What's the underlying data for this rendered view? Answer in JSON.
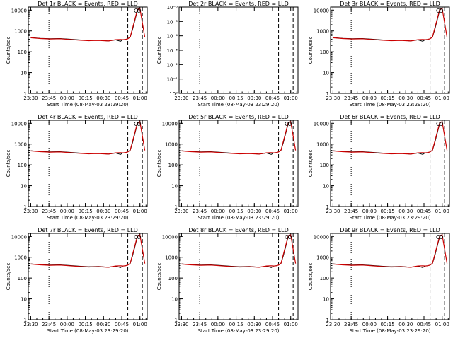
{
  "figure": {
    "background": "#ffffff",
    "events_color": "#000000",
    "lld_color": "#cc0000"
  },
  "chart_data": [
    {
      "type": "line",
      "title": "Det 1r BLACK = Events, RED = LLD",
      "xlabel": "Start Time (08-May-03 23:29:20)",
      "ylabel": "Counts/sec",
      "scale": "log",
      "x_ticks": [
        "23:30",
        "23:45",
        "00:00",
        "00:15",
        "00:30",
        "00:45",
        "01:00"
      ],
      "y_ticks": [
        "1",
        "10",
        "100",
        "1000",
        "10000"
      ],
      "ylim": [
        1,
        14000
      ],
      "x_minutes": [
        0,
        8,
        16,
        24,
        32,
        40,
        48,
        56,
        64,
        70,
        74,
        76,
        78,
        80,
        82,
        84,
        88,
        90,
        94
      ],
      "series": [
        {
          "name": "BLACK",
          "values": [
            480,
            440,
            420,
            430,
            400,
            370,
            350,
            360,
            330,
            370,
            320,
            380,
            390,
            420,
            500,
            1200,
            10000,
            12000,
            null
          ]
        },
        {
          "name": "RED",
          "values": [
            470,
            430,
            410,
            420,
            390,
            360,
            340,
            350,
            330,
            380,
            390,
            380,
            390,
            420,
            520,
            1400,
            11000,
            12000,
            500
          ]
        }
      ],
      "vlines": [
        {
          "x": 15,
          "style": "dotted"
        },
        {
          "x": 80,
          "style": "dashed"
        },
        {
          "x": 92,
          "style": "dashed"
        }
      ]
    },
    {
      "type": "line",
      "title": "Det 2r BLACK = Events, RED = LLD",
      "xlabel": "Start Time (08-May-03 23:29:20)",
      "ylabel": "Counts/sec",
      "scale": "log",
      "x_ticks": [
        "23:30",
        "23:45",
        "00:00",
        "00:15",
        "00:30",
        "00:45",
        "01:00"
      ],
      "y_ticks": [
        "10⁰",
        "10⁻¹",
        "10⁻²",
        "10⁻³",
        "10⁻⁴",
        "10⁻⁵",
        "10⁻⁶"
      ],
      "empty": true,
      "vlines": [
        {
          "x": 15,
          "style": "dotted"
        },
        {
          "x": 80,
          "style": "dashed"
        },
        {
          "x": 92,
          "style": "dashed"
        }
      ]
    },
    {
      "type": "line",
      "title": "Det 3r BLACK = Events, RED = LLD",
      "xlabel": "Start Time (08-May-03 23:29:20)",
      "ylabel": "Counts/sec",
      "scale": "log",
      "x_ticks": [
        "23:30",
        "23:45",
        "00:00",
        "00:15",
        "00:30",
        "00:45",
        "01:00"
      ],
      "y_ticks": [
        "1",
        "10",
        "100",
        "1000",
        "10000"
      ],
      "ylim": [
        1,
        14000
      ],
      "x_minutes": [
        0,
        8,
        16,
        24,
        32,
        40,
        48,
        56,
        64,
        70,
        74,
        76,
        78,
        80,
        82,
        84,
        88,
        90,
        94
      ],
      "series": [
        {
          "name": "BLACK",
          "values": [
            480,
            440,
            420,
            430,
            400,
            370,
            350,
            360,
            330,
            370,
            320,
            380,
            390,
            420,
            500,
            1200,
            10000,
            12000,
            null
          ]
        },
        {
          "name": "RED",
          "values": [
            470,
            430,
            410,
            420,
            390,
            360,
            340,
            350,
            330,
            380,
            390,
            380,
            390,
            420,
            520,
            1400,
            11000,
            12000,
            500
          ]
        }
      ],
      "vlines": [
        {
          "x": 15,
          "style": "dotted"
        },
        {
          "x": 80,
          "style": "dashed"
        },
        {
          "x": 92,
          "style": "dashed"
        }
      ]
    },
    {
      "type": "line",
      "title": "Det 4r BLACK = Events, RED = LLD",
      "xlabel": "Start Time (08-May-03 23:29:20)",
      "ylabel": "Counts/sec",
      "scale": "log",
      "x_ticks": [
        "23:30",
        "23:45",
        "00:00",
        "00:15",
        "00:30",
        "00:45",
        "01:00"
      ],
      "y_ticks": [
        "1",
        "10",
        "100",
        "1000",
        "10000"
      ],
      "ylim": [
        1,
        14000
      ],
      "x_minutes": [
        0,
        8,
        16,
        24,
        32,
        40,
        48,
        56,
        64,
        70,
        74,
        76,
        78,
        80,
        82,
        84,
        88,
        90,
        94
      ],
      "series": [
        {
          "name": "BLACK",
          "values": [
            480,
            440,
            420,
            430,
            400,
            370,
            350,
            360,
            330,
            370,
            320,
            380,
            390,
            420,
            500,
            1200,
            10000,
            12000,
            null
          ]
        },
        {
          "name": "RED",
          "values": [
            470,
            430,
            410,
            420,
            390,
            360,
            340,
            350,
            330,
            380,
            390,
            380,
            390,
            420,
            520,
            1400,
            11000,
            12000,
            500
          ]
        }
      ],
      "vlines": [
        {
          "x": 15,
          "style": "dotted"
        },
        {
          "x": 80,
          "style": "dashed"
        },
        {
          "x": 92,
          "style": "dashed"
        }
      ]
    },
    {
      "type": "line",
      "title": "Det 5r BLACK = Events, RED = LLD",
      "xlabel": "Start Time (08-May-03 23:29:20)",
      "ylabel": "Counts/sec",
      "scale": "log",
      "x_ticks": [
        "23:30",
        "23:45",
        "00:00",
        "00:15",
        "00:30",
        "00:45",
        "01:00"
      ],
      "y_ticks": [
        "1",
        "10",
        "100",
        "1000",
        "10000"
      ],
      "ylim": [
        1,
        14000
      ],
      "x_minutes": [
        0,
        8,
        16,
        24,
        32,
        40,
        48,
        56,
        64,
        70,
        74,
        76,
        78,
        80,
        82,
        84,
        88,
        90,
        94
      ],
      "series": [
        {
          "name": "BLACK",
          "values": [
            480,
            440,
            420,
            430,
            400,
            370,
            350,
            360,
            330,
            370,
            320,
            380,
            390,
            420,
            500,
            1200,
            10000,
            12000,
            null
          ]
        },
        {
          "name": "RED",
          "values": [
            470,
            430,
            410,
            420,
            390,
            360,
            340,
            350,
            330,
            380,
            390,
            380,
            390,
            420,
            520,
            1400,
            11000,
            12000,
            500
          ]
        }
      ],
      "vlines": [
        {
          "x": 15,
          "style": "dotted"
        },
        {
          "x": 80,
          "style": "dashed"
        },
        {
          "x": 92,
          "style": "dashed"
        }
      ]
    },
    {
      "type": "line",
      "title": "Det 6r BLACK = Events, RED = LLD",
      "xlabel": "Start Time (08-May-03 23:29:20)",
      "ylabel": "Counts/sec",
      "scale": "log",
      "x_ticks": [
        "23:30",
        "23:45",
        "00:00",
        "00:15",
        "00:30",
        "00:45",
        "01:00"
      ],
      "y_ticks": [
        "1",
        "10",
        "100",
        "1000",
        "10000"
      ],
      "ylim": [
        1,
        14000
      ],
      "x_minutes": [
        0,
        8,
        16,
        24,
        32,
        40,
        48,
        56,
        64,
        70,
        74,
        76,
        78,
        80,
        82,
        84,
        88,
        90,
        94
      ],
      "series": [
        {
          "name": "BLACK",
          "values": [
            480,
            440,
            420,
            430,
            400,
            370,
            350,
            360,
            330,
            370,
            320,
            380,
            390,
            420,
            500,
            1200,
            10000,
            12000,
            null
          ]
        },
        {
          "name": "RED",
          "values": [
            470,
            430,
            410,
            420,
            390,
            360,
            340,
            350,
            330,
            380,
            390,
            380,
            390,
            420,
            520,
            1400,
            11000,
            12000,
            500
          ]
        }
      ],
      "vlines": [
        {
          "x": 15,
          "style": "dotted"
        },
        {
          "x": 80,
          "style": "dashed"
        },
        {
          "x": 92,
          "style": "dashed"
        }
      ]
    },
    {
      "type": "line",
      "title": "Det 7r BLACK = Events, RED = LLD",
      "xlabel": "Start Time (08-May-03 23:29:20)",
      "ylabel": "Counts/sec",
      "scale": "log",
      "x_ticks": [
        "23:30",
        "23:45",
        "00:00",
        "00:15",
        "00:30",
        "00:45",
        "01:00"
      ],
      "y_ticks": [
        "1",
        "10",
        "100",
        "1000",
        "10000"
      ],
      "ylim": [
        1,
        14000
      ],
      "x_minutes": [
        0,
        8,
        16,
        24,
        32,
        40,
        48,
        56,
        64,
        70,
        74,
        76,
        78,
        80,
        82,
        84,
        88,
        90,
        94
      ],
      "series": [
        {
          "name": "BLACK",
          "values": [
            480,
            440,
            420,
            430,
            400,
            370,
            350,
            360,
            330,
            370,
            320,
            380,
            390,
            420,
            500,
            1200,
            10000,
            12000,
            null
          ]
        },
        {
          "name": "RED",
          "values": [
            470,
            430,
            410,
            420,
            390,
            360,
            340,
            350,
            330,
            380,
            390,
            380,
            390,
            420,
            520,
            1400,
            11000,
            12000,
            500
          ]
        }
      ],
      "vlines": [
        {
          "x": 15,
          "style": "dotted"
        },
        {
          "x": 80,
          "style": "dashed"
        },
        {
          "x": 92,
          "style": "dashed"
        }
      ]
    },
    {
      "type": "line",
      "title": "Det 8r BLACK = Events, RED = LLD",
      "xlabel": "Start Time (08-May-03 23:29:20)",
      "ylabel": "Counts/sec",
      "scale": "log",
      "x_ticks": [
        "23:30",
        "23:45",
        "00:00",
        "00:15",
        "00:30",
        "00:45",
        "01:00"
      ],
      "y_ticks": [
        "1",
        "10",
        "100",
        "1000",
        "10000"
      ],
      "ylim": [
        1,
        14000
      ],
      "x_minutes": [
        0,
        8,
        16,
        24,
        32,
        40,
        48,
        56,
        64,
        70,
        74,
        76,
        78,
        80,
        82,
        84,
        88,
        90,
        94
      ],
      "series": [
        {
          "name": "BLACK",
          "values": [
            480,
            440,
            420,
            430,
            400,
            370,
            350,
            360,
            330,
            370,
            320,
            380,
            390,
            420,
            500,
            1200,
            10000,
            12000,
            null
          ]
        },
        {
          "name": "RED",
          "values": [
            470,
            430,
            410,
            420,
            390,
            360,
            340,
            350,
            330,
            380,
            390,
            380,
            390,
            420,
            520,
            1400,
            11000,
            12000,
            500
          ]
        }
      ],
      "vlines": [
        {
          "x": 15,
          "style": "dotted"
        },
        {
          "x": 80,
          "style": "dashed"
        },
        {
          "x": 92,
          "style": "dashed"
        }
      ]
    },
    {
      "type": "line",
      "title": "Det 9r BLACK = Events, RED = LLD",
      "xlabel": "Start Time (08-May-03 23:29:20)",
      "ylabel": "Counts/sec",
      "scale": "log",
      "x_ticks": [
        "23:30",
        "23:45",
        "00:00",
        "00:15",
        "00:30",
        "00:45",
        "01:00"
      ],
      "y_ticks": [
        "1",
        "10",
        "100",
        "1000",
        "10000"
      ],
      "ylim": [
        1,
        14000
      ],
      "x_minutes": [
        0,
        8,
        16,
        24,
        32,
        40,
        48,
        56,
        64,
        70,
        74,
        76,
        78,
        80,
        82,
        84,
        88,
        90,
        94
      ],
      "series": [
        {
          "name": "BLACK",
          "values": [
            480,
            440,
            420,
            430,
            400,
            370,
            350,
            360,
            330,
            370,
            320,
            380,
            390,
            420,
            500,
            1200,
            10000,
            12000,
            null
          ]
        },
        {
          "name": "RED",
          "values": [
            470,
            430,
            410,
            420,
            390,
            360,
            340,
            350,
            330,
            380,
            390,
            380,
            390,
            420,
            520,
            1400,
            11000,
            12000,
            500
          ]
        }
      ],
      "vlines": [
        {
          "x": 15,
          "style": "dotted"
        },
        {
          "x": 80,
          "style": "dashed"
        },
        {
          "x": 92,
          "style": "dashed"
        }
      ]
    }
  ]
}
